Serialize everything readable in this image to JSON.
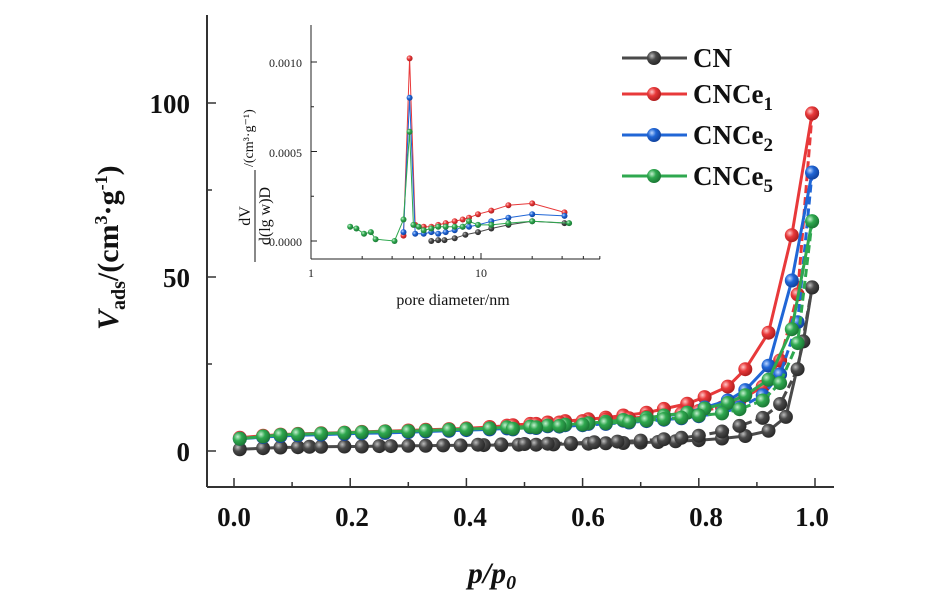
{
  "chart_data": [
    {
      "id": "main",
      "type": "line",
      "title": "",
      "xlabel": "p/p0",
      "xlabel_parts": {
        "main": "p/p",
        "sub": "0"
      },
      "ylabel": "V_ads/(cm3·g-1)",
      "ylabel_parts": {
        "v": "V",
        "sub": "ads",
        "unit_open": "/(cm",
        "sup3": "3",
        "dot_g": "·g",
        "sup_neg1": "-1",
        "close": ")"
      },
      "xlim": [
        -0.03,
        1.03
      ],
      "ylim": [
        -10,
        125
      ],
      "xticks": [
        0.0,
        0.2,
        0.4,
        0.6,
        0.8,
        1.0
      ],
      "xtick_labels": [
        "0.0",
        "0.2",
        "0.4",
        "0.6",
        "0.8",
        "1.0"
      ],
      "yticks": [
        0,
        50,
        100
      ],
      "ytick_labels": [
        "0",
        "50",
        "100"
      ],
      "grid": false,
      "legend_position": "top-right",
      "series": [
        {
          "name": "CN",
          "label_main": "CN",
          "label_sub": "",
          "color": "#4a4a4a",
          "adsorption": {
            "x": [
              0.01,
              0.05,
              0.08,
              0.11,
              0.13,
              0.15,
              0.19,
              0.22,
              0.25,
              0.27,
              0.3,
              0.33,
              0.36,
              0.39,
              0.43,
              0.46,
              0.49,
              0.52,
              0.55,
              0.58,
              0.61,
              0.64,
              0.67,
              0.7,
              0.73,
              0.76,
              0.8,
              0.84,
              0.88,
              0.92,
              0.95,
              0.98,
              0.995
            ],
            "y": [
              0.5,
              0.8,
              1.0,
              1.1,
              1.2,
              1.2,
              1.3,
              1.3,
              1.4,
              1.4,
              1.5,
              1.5,
              1.6,
              1.6,
              1.7,
              1.7,
              1.8,
              1.8,
              1.9,
              2.0,
              2.1,
              2.2,
              2.3,
              2.4,
              2.6,
              2.8,
              3.1,
              3.6,
              4.3,
              5.8,
              9.8,
              31.5,
              47
            ]
          },
          "desorption": {
            "x": [
              0.995,
              0.97,
              0.94,
              0.91,
              0.87,
              0.84,
              0.8,
              0.77,
              0.74,
              0.7,
              0.66,
              0.62,
              0.58,
              0.54,
              0.5,
              0.46,
              0.42
            ],
            "y": [
              47,
              23.5,
              13.5,
              9.5,
              7.2,
              5.6,
              4.4,
              3.8,
              3.4,
              3.0,
              2.7,
              2.5,
              2.3,
              2.1,
              2.0,
              1.9,
              1.8
            ]
          }
        },
        {
          "name": "CNCe1",
          "label_main": "CNCe",
          "label_sub": "1",
          "color": "#e8393a",
          "adsorption": {
            "x": [
              0.01,
              0.05,
              0.08,
              0.11,
              0.15,
              0.19,
              0.22,
              0.26,
              0.3,
              0.33,
              0.37,
              0.4,
              0.44,
              0.47,
              0.51,
              0.54,
              0.57,
              0.61,
              0.64,
              0.67,
              0.71,
              0.74,
              0.78,
              0.81,
              0.85,
              0.88,
              0.92,
              0.96,
              0.995
            ],
            "y": [
              3.8,
              4.4,
              4.7,
              4.9,
              5.1,
              5.3,
              5.5,
              5.7,
              5.9,
              6.1,
              6.3,
              6.5,
              6.9,
              7.3,
              7.8,
              8.2,
              8.6,
              9.1,
              9.6,
              10.2,
              11.0,
              12.1,
              13.6,
              15.5,
              18.5,
              23.5,
              34,
              62,
              97
            ]
          },
          "desorption": {
            "x": [
              0.995,
              0.97,
              0.94,
              0.91,
              0.87,
              0.84,
              0.8,
              0.77,
              0.74,
              0.71,
              0.68,
              0.64,
              0.6,
              0.56,
              0.52,
              0.48
            ],
            "y": [
              97,
              45,
              26,
              18.5,
              14.5,
              12.5,
              11.5,
              10.8,
              10.2,
              9.8,
              9.4,
              9.0,
              8.6,
              8.2,
              7.8,
              7.4
            ]
          }
        },
        {
          "name": "CNCe2",
          "label_main": "CNCe",
          "label_sub": "2",
          "color": "#2066d6",
          "adsorption": {
            "x": [
              0.01,
              0.05,
              0.08,
              0.11,
              0.15,
              0.19,
              0.22,
              0.26,
              0.3,
              0.33,
              0.37,
              0.4,
              0.44,
              0.47,
              0.51,
              0.54,
              0.57,
              0.61,
              0.64,
              0.67,
              0.71,
              0.74,
              0.78,
              0.81,
              0.85,
              0.88,
              0.92,
              0.96,
              0.995
            ],
            "y": [
              3.5,
              4.0,
              4.3,
              4.5,
              4.7,
              4.9,
              5.1,
              5.2,
              5.4,
              5.6,
              5.8,
              6.0,
              6.2,
              6.5,
              6.8,
              7.1,
              7.4,
              7.8,
              8.2,
              8.7,
              9.3,
              10.0,
              11.0,
              12.5,
              14.5,
              17.5,
              24.5,
              49,
              80
            ]
          },
          "desorption": {
            "x": [
              0.995,
              0.97,
              0.94,
              0.91,
              0.87,
              0.84,
              0.8,
              0.77,
              0.74,
              0.71,
              0.68,
              0.64,
              0.6,
              0.56,
              0.52,
              0.48
            ],
            "y": [
              80,
              37,
              22,
              16,
              12.5,
              11,
              10,
              9.4,
              9.0,
              8.6,
              8.2,
              7.8,
              7.4,
              7.0,
              6.6,
              6.2
            ]
          }
        },
        {
          "name": "CNCe5",
          "label_main": "CNCe",
          "label_sub": "5",
          "color": "#2fa84f",
          "adsorption": {
            "x": [
              0.01,
              0.05,
              0.08,
              0.11,
              0.15,
              0.19,
              0.22,
              0.26,
              0.3,
              0.33,
              0.37,
              0.4,
              0.44,
              0.47,
              0.51,
              0.54,
              0.57,
              0.61,
              0.64,
              0.67,
              0.71,
              0.74,
              0.78,
              0.81,
              0.85,
              0.88,
              0.92,
              0.96,
              0.995
            ],
            "y": [
              3.5,
              4.2,
              4.6,
              4.8,
              5.0,
              5.2,
              5.4,
              5.6,
              5.7,
              5.9,
              6.1,
              6.3,
              6.5,
              6.8,
              7.0,
              7.3,
              7.6,
              8.0,
              8.4,
              8.9,
              9.5,
              10.2,
              11.0,
              12.2,
              13.8,
              16.0,
              20.5,
              35,
              66
            ]
          },
          "desorption": {
            "x": [
              0.995,
              0.97,
              0.94,
              0.91,
              0.87,
              0.84,
              0.8,
              0.77,
              0.74,
              0.71,
              0.68,
              0.64,
              0.6,
              0.56,
              0.52,
              0.48
            ],
            "y": [
              66,
              31,
              19.5,
              14.5,
              12,
              10.8,
              10.2,
              9.6,
              9.2,
              8.8,
              8.4,
              8.0,
              7.6,
              7.2,
              6.8,
              6.4
            ]
          }
        }
      ]
    },
    {
      "id": "inset",
      "type": "line",
      "title": "",
      "xlabel": "pore diameter/nm",
      "ylabel": "dV/d(lg w)D/(cm3·g-1)",
      "ylabel_parts": {
        "num": "dV",
        "den": "d(lg w)D",
        "unit": "/(cm³·g⁻¹)"
      },
      "xscale": "log",
      "xlim": [
        1,
        50
      ],
      "ylim": [
        -0.0001,
        0.0012
      ],
      "xticks": [
        1,
        10
      ],
      "xtick_labels": [
        "1",
        "10"
      ],
      "yticks": [
        0.0,
        0.0005,
        0.001
      ],
      "ytick_labels": [
        "0.0000",
        "0.0005",
        "0.0010"
      ],
      "grid": false,
      "series": [
        {
          "name": "CN",
          "color": "#4a4a4a",
          "x": [
            5.1,
            5.6,
            6.1,
            7.0,
            8.1,
            9.6,
            11.5,
            14.5,
            20,
            31
          ],
          "y": [
            0.0,
            5e-06,
            5e-06,
            1.5e-05,
            3.5e-05,
            5e-05,
            7e-05,
            9e-05,
            0.00011,
            0.0001
          ]
        },
        {
          "name": "CNCe1",
          "color": "#e8393a",
          "x": [
            3.5,
            3.8,
            4.1,
            4.6,
            5.1,
            5.6,
            6.2,
            7.0,
            7.8,
            8.5,
            9.6,
            11.5,
            14.5,
            20,
            31
          ],
          "y": [
            3e-05,
            0.00102,
            9e-05,
            8e-05,
            8e-05,
            9e-05,
            0.0001,
            0.00011,
            0.00012,
            0.00013,
            0.00015,
            0.00017,
            0.0002,
            0.00021,
            0.00016
          ]
        },
        {
          "name": "CNCe2",
          "color": "#2066d6",
          "x": [
            3.5,
            3.8,
            4.1,
            4.6,
            5.1,
            5.6,
            6.2,
            7.0,
            7.8,
            8.5,
            9.6,
            11.5,
            14.5,
            20,
            31
          ],
          "y": [
            5e-05,
            0.0008,
            4e-05,
            4e-05,
            5e-05,
            4e-05,
            5e-05,
            6e-05,
            8e-05,
            8e-05,
            9e-05,
            0.00011,
            0.00013,
            0.00015,
            0.00014
          ]
        },
        {
          "name": "CNCe5",
          "color": "#2fa84f",
          "x": [
            1.7,
            1.85,
            2.05,
            2.25,
            2.4,
            3.1,
            3.5,
            3.8,
            4.0,
            4.3,
            4.6,
            5.1,
            5.6,
            6.2,
            7.0,
            7.8,
            8.5,
            9.6,
            11.5,
            14.5,
            20,
            33
          ],
          "y": [
            8e-05,
            7e-05,
            4e-05,
            5e-05,
            1e-05,
            0.0,
            0.00012,
            0.00061,
            9e-05,
            8e-05,
            6e-05,
            7e-05,
            8e-05,
            8e-05,
            8e-05,
            8e-05,
            0.00011,
            9e-05,
            9e-05,
            0.0001,
            0.00011,
            0.0001
          ]
        }
      ]
    }
  ]
}
